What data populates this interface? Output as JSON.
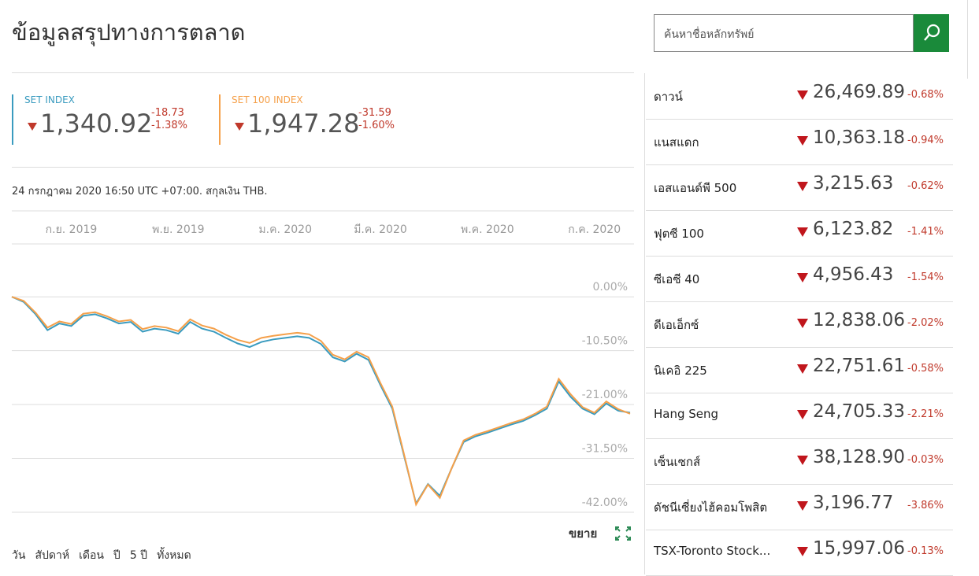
{
  "header": {
    "title": "ข้อมูลสรุปทางการตลาด"
  },
  "indices": [
    {
      "name": "SET INDEX",
      "value": "1,340.92",
      "change": "-18.73",
      "pct": "-1.38%"
    },
    {
      "name": "SET 100 INDEX",
      "value": "1,947.28",
      "change": "-31.59",
      "pct": "-1.60%"
    }
  ],
  "timestamp": "24 กรกฎาคม 2020 16:50 UTC +07:00. สกุลเงิน THB.",
  "chart_data": {
    "type": "line",
    "categories": [
      null,
      null,
      null,
      null,
      null,
      "ก.ย. 2019",
      null,
      null,
      null,
      null,
      null,
      null,
      null,
      null,
      "พ.ย. 2019",
      null,
      null,
      null,
      null,
      null,
      null,
      null,
      null,
      "ม.ค. 2020",
      null,
      null,
      null,
      null,
      null,
      null,
      null,
      "มี.ค. 2020",
      null,
      null,
      null,
      null,
      null,
      null,
      null,
      null,
      "พ.ค. 2020",
      null,
      null,
      null,
      null,
      null,
      null,
      null,
      null,
      "ก.ค. 2020",
      null,
      null,
      null
    ],
    "series": [
      {
        "name": "SET INDEX",
        "color": "#3a9bbf",
        "values": [
          0,
          -1,
          -3.4,
          -6.5,
          -5.2,
          -5.7,
          -3.7,
          -3.4,
          -4.2,
          -5.2,
          -4.9,
          -6.8,
          -6.2,
          -6.5,
          -7.2,
          -4.9,
          -6.2,
          -6.8,
          -8,
          -9.1,
          -9.8,
          -8.8,
          -8.3,
          -8,
          -7.7,
          -8,
          -9.2,
          -11.8,
          -12.6,
          -11.1,
          -12.3,
          -17.2,
          -21.8,
          -31.1,
          -40.3,
          -36.5,
          -38.8,
          -33.4,
          -28.3,
          -27.2,
          -26.5,
          -25.7,
          -24.9,
          -24.2,
          -23.1,
          -21.8,
          -16.5,
          -19.5,
          -21.8,
          -22.9,
          -20.8,
          -22.2,
          -22.6
        ]
      },
      {
        "name": "SET 100 INDEX",
        "color": "#f5a04a",
        "values": [
          0,
          -0.8,
          -3.1,
          -6,
          -4.8,
          -5.3,
          -3.3,
          -3,
          -3.8,
          -4.8,
          -4.5,
          -6.3,
          -5.7,
          -6,
          -6.7,
          -4.4,
          -5.6,
          -6.2,
          -7.4,
          -8.4,
          -9,
          -8,
          -7.6,
          -7.3,
          -7,
          -7.3,
          -8.6,
          -11.3,
          -12.2,
          -10.7,
          -11.8,
          -16.8,
          -21.4,
          -30.8,
          -40.5,
          -36.6,
          -39.2,
          -33.4,
          -28,
          -26.9,
          -26.2,
          -25.4,
          -24.6,
          -23.9,
          -22.8,
          -21.4,
          -16,
          -19,
          -21.5,
          -22.6,
          -20.4,
          -21.9,
          -22.8
        ]
      }
    ],
    "ylim": [
      -42,
      10
    ],
    "yticks": [
      {
        "value": 0,
        "label": "0.00%"
      },
      {
        "value": -10.5,
        "label": "-10.50%"
      },
      {
        "value": -21,
        "label": "-21.00%"
      },
      {
        "value": -31.5,
        "label": "-31.50%"
      },
      {
        "value": -42,
        "label": "-42.00%"
      }
    ],
    "grid": true
  },
  "expand": "ขยาย",
  "ranges": [
    "วัน",
    "สัปดาห์",
    "เดือน",
    "ปี",
    "5 ปี",
    "ทั้งหมด"
  ],
  "search": {
    "placeholder": "ค้นหาชื่อหลักทรัพย์"
  },
  "markets": [
    {
      "name": "ดาวน์",
      "value": "26,469.89",
      "pct": "-0.68%"
    },
    {
      "name": "แนสแดก",
      "value": "10,363.18",
      "pct": "-0.94%"
    },
    {
      "name": "เอสแอนด์พี 500",
      "value": "3,215.63",
      "pct": "-0.62%"
    },
    {
      "name": "ฟุตซี 100",
      "value": "6,123.82",
      "pct": "-1.41%"
    },
    {
      "name": "ซีเอซี 40",
      "value": "4,956.43",
      "pct": "-1.54%"
    },
    {
      "name": "ดีเอเอ็กซ์",
      "value": "12,838.06",
      "pct": "-2.02%"
    },
    {
      "name": "นิเคอิ 225",
      "value": "22,751.61",
      "pct": "-0.58%"
    },
    {
      "name": "Hang Seng",
      "value": "24,705.33",
      "pct": "-2.21%"
    },
    {
      "name": "เซ็นเซกส์",
      "value": "38,128.90",
      "pct": "-0.03%"
    },
    {
      "name": "ดัชนีเซี่ยงไฮ้คอมโพสิต",
      "value": "3,196.77",
      "pct": "-3.86%"
    },
    {
      "name": "TSX-Toronto Stock...",
      "value": "15,997.06",
      "pct": "-0.13%"
    }
  ]
}
